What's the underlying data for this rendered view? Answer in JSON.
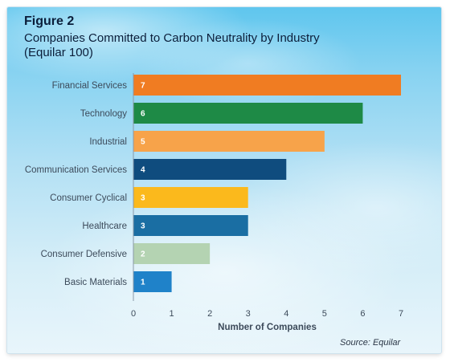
{
  "figure": {
    "label": "Figure 2",
    "title": "Companies Committed to Carbon Neutrality by Industry (Equilar 100)",
    "source": "Source: Equilar"
  },
  "chart_data": {
    "type": "bar",
    "orientation": "horizontal",
    "categories": [
      "Financial Services",
      "Technology",
      "Industrial",
      "Communication Services",
      "Consumer Cyclical",
      "Healthcare",
      "Consumer Defensive",
      "Basic Materials"
    ],
    "values": [
      7,
      6,
      5,
      4,
      3,
      3,
      2,
      1
    ],
    "data_labels": [
      "7",
      "6",
      "5",
      "4",
      "3",
      "3",
      "2",
      "1"
    ],
    "colors": [
      "#f07c22",
      "#1e8a46",
      "#f7a34a",
      "#0f4c7e",
      "#fbb91c",
      "#1a6ea3",
      "#b4d3b2",
      "#1f82c9"
    ],
    "xlabel": "Number of Companies",
    "ylabel": "",
    "xlim": [
      0,
      7
    ],
    "xticks": [
      "0",
      "1",
      "2",
      "3",
      "4",
      "5",
      "6",
      "7"
    ],
    "grid": false,
    "legend": "none"
  }
}
